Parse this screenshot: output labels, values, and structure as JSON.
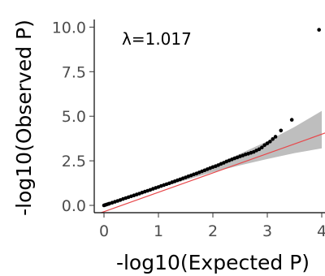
{
  "chart_data": {
    "type": "scatter",
    "title": "",
    "xlabel": "-log10(Expected P)",
    "ylabel": "-log10(Observed P)",
    "xlim": [
      0,
      4.1
    ],
    "ylim": [
      0,
      10.2
    ],
    "x_ticks": [
      "0",
      "1",
      "2",
      "3",
      "4"
    ],
    "y_ticks": [
      "0.0",
      "2.5",
      "5.0",
      "7.5",
      "10.0"
    ],
    "annotation": "λ=1.017",
    "grid": false,
    "legend": "none",
    "reference_line": {
      "x": [
        0,
        4.1
      ],
      "y": [
        0,
        4.1
      ],
      "color": "#e8474a"
    },
    "confidence_band": {
      "x": [
        0,
        0.5,
        1.0,
        1.5,
        2.0,
        2.5,
        3.0,
        3.5,
        4.0
      ],
      "lower": [
        0,
        0.48,
        0.96,
        1.42,
        1.86,
        2.25,
        2.6,
        2.93,
        3.2
      ],
      "upper": [
        0,
        0.52,
        1.05,
        1.6,
        2.2,
        2.9,
        3.6,
        4.4,
        5.3
      ],
      "color": "#bebebe"
    },
    "points": {
      "x": [
        0.0,
        0.02,
        0.05,
        0.08,
        0.1,
        0.15,
        0.2,
        0.25,
        0.3,
        0.35,
        0.4,
        0.45,
        0.5,
        0.55,
        0.6,
        0.65,
        0.7,
        0.75,
        0.8,
        0.85,
        0.9,
        0.95,
        1.0,
        1.05,
        1.1,
        1.15,
        1.2,
        1.25,
        1.3,
        1.35,
        1.4,
        1.45,
        1.5,
        1.55,
        1.6,
        1.65,
        1.7,
        1.75,
        1.8,
        1.85,
        1.9,
        1.95,
        2.0,
        2.05,
        2.1,
        2.15,
        2.2,
        2.25,
        2.3,
        2.35,
        2.4,
        2.45,
        2.5,
        2.55,
        2.6,
        2.65,
        2.7,
        2.75,
        2.8,
        2.85,
        2.9,
        2.95,
        3.0,
        3.05,
        3.1,
        3.15,
        3.25,
        3.45,
        3.95
      ],
      "y": [
        0.0,
        0.02,
        0.05,
        0.08,
        0.1,
        0.15,
        0.2,
        0.25,
        0.3,
        0.36,
        0.41,
        0.46,
        0.51,
        0.56,
        0.61,
        0.66,
        0.72,
        0.77,
        0.82,
        0.87,
        0.93,
        0.98,
        1.03,
        1.09,
        1.14,
        1.19,
        1.24,
        1.3,
        1.35,
        1.41,
        1.46,
        1.52,
        1.57,
        1.63,
        1.68,
        1.74,
        1.79,
        1.85,
        1.91,
        1.97,
        2.03,
        2.09,
        2.15,
        2.2,
        2.26,
        2.33,
        2.39,
        2.46,
        2.52,
        2.58,
        2.64,
        2.69,
        2.75,
        2.8,
        2.86,
        2.9,
        2.95,
        3.0,
        3.08,
        3.15,
        3.25,
        3.38,
        3.48,
        3.58,
        3.72,
        3.85,
        4.2,
        4.8,
        9.85
      ],
      "color": "#000000"
    }
  }
}
